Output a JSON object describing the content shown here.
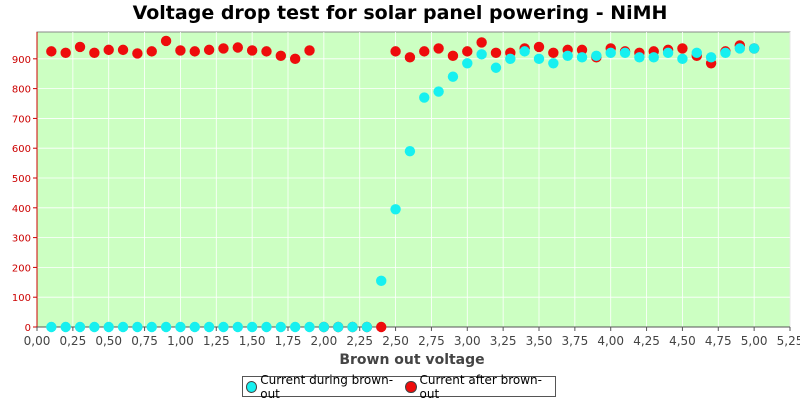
{
  "chart_data": {
    "type": "scatter",
    "title": "Voltage drop test for solar panel powering -  NiMH",
    "xlabel": "Brown out voltage",
    "ylabel": "",
    "xlim": [
      0,
      5.25
    ],
    "ylim": [
      0,
      990
    ],
    "x_ticks": [
      "0,00",
      "0,25",
      "0,50",
      "0,75",
      "1,00",
      "1,25",
      "1,50",
      "1,75",
      "2,00",
      "2,25",
      "2,50",
      "2,75",
      "3,00",
      "3,25",
      "3,50",
      "3,75",
      "4,00",
      "4,25",
      "4,50",
      "4,75",
      "5,00",
      "5,25"
    ],
    "y_ticks": [
      "0",
      "100",
      "200",
      "300",
      "400",
      "500",
      "600",
      "700",
      "800",
      "900"
    ],
    "grid": true,
    "legend_position": "bottom",
    "plot_background": "#ccffc2",
    "series": [
      {
        "name": "Current during brown-out",
        "color": "#17f0f0",
        "points": [
          [
            0.1,
            0
          ],
          [
            0.2,
            0
          ],
          [
            0.3,
            0
          ],
          [
            0.4,
            0
          ],
          [
            0.5,
            0
          ],
          [
            0.6,
            0
          ],
          [
            0.7,
            0
          ],
          [
            0.8,
            0
          ],
          [
            0.9,
            0
          ],
          [
            1.0,
            0
          ],
          [
            1.1,
            0
          ],
          [
            1.2,
            0
          ],
          [
            1.3,
            0
          ],
          [
            1.4,
            0
          ],
          [
            1.5,
            0
          ],
          [
            1.6,
            0
          ],
          [
            1.7,
            0
          ],
          [
            1.8,
            0
          ],
          [
            1.9,
            0
          ],
          [
            2.0,
            0
          ],
          [
            2.1,
            0
          ],
          [
            2.2,
            0
          ],
          [
            2.3,
            0
          ],
          [
            2.4,
            155
          ],
          [
            2.5,
            395
          ],
          [
            2.6,
            590
          ],
          [
            2.7,
            770
          ],
          [
            2.8,
            790
          ],
          [
            2.9,
            840
          ],
          [
            3.0,
            885
          ],
          [
            3.1,
            915
          ],
          [
            3.2,
            870
          ],
          [
            3.3,
            900
          ],
          [
            3.4,
            925
          ],
          [
            3.5,
            900
          ],
          [
            3.6,
            885
          ],
          [
            3.7,
            910
          ],
          [
            3.8,
            905
          ],
          [
            3.9,
            910
          ],
          [
            4.0,
            920
          ],
          [
            4.1,
            920
          ],
          [
            4.2,
            905
          ],
          [
            4.3,
            905
          ],
          [
            4.4,
            920
          ],
          [
            4.5,
            900
          ],
          [
            4.6,
            920
          ],
          [
            4.7,
            905
          ],
          [
            4.8,
            920
          ],
          [
            4.9,
            935
          ],
          [
            5.0,
            935
          ]
        ]
      },
      {
        "name": "Current after brown-out",
        "color": "#ee0c0c",
        "points": [
          [
            0.1,
            925
          ],
          [
            0.2,
            920
          ],
          [
            0.3,
            940
          ],
          [
            0.4,
            920
          ],
          [
            0.5,
            930
          ],
          [
            0.6,
            930
          ],
          [
            0.7,
            918
          ],
          [
            0.8,
            925
          ],
          [
            0.9,
            960
          ],
          [
            1.0,
            928
          ],
          [
            1.1,
            925
          ],
          [
            1.2,
            930
          ],
          [
            1.3,
            935
          ],
          [
            1.4,
            938
          ],
          [
            1.5,
            928
          ],
          [
            1.6,
            925
          ],
          [
            1.7,
            910
          ],
          [
            1.8,
            900
          ],
          [
            1.9,
            928
          ],
          [
            2.0,
            0
          ],
          [
            2.1,
            0
          ],
          [
            2.2,
            0
          ],
          [
            2.3,
            0
          ],
          [
            2.4,
            0
          ],
          [
            2.5,
            925
          ],
          [
            2.6,
            905
          ],
          [
            2.7,
            925
          ],
          [
            2.8,
            935
          ],
          [
            2.9,
            910
          ],
          [
            3.0,
            925
          ],
          [
            3.1,
            955
          ],
          [
            3.2,
            920
          ],
          [
            3.3,
            920
          ],
          [
            3.4,
            935
          ],
          [
            3.5,
            940
          ],
          [
            3.6,
            920
          ],
          [
            3.7,
            930
          ],
          [
            3.8,
            930
          ],
          [
            3.9,
            905
          ],
          [
            4.0,
            935
          ],
          [
            4.1,
            925
          ],
          [
            4.2,
            920
          ],
          [
            4.3,
            925
          ],
          [
            4.4,
            930
          ],
          [
            4.5,
            935
          ],
          [
            4.6,
            910
          ],
          [
            4.7,
            885
          ],
          [
            4.8,
            925
          ],
          [
            4.9,
            945
          ],
          [
            5.0,
            935
          ]
        ]
      }
    ]
  }
}
